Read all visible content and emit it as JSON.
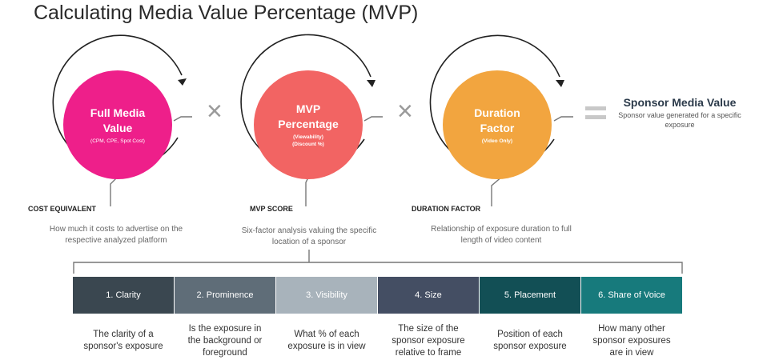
{
  "title": "Calculating Media Value Percentage (MVP)",
  "circles": [
    {
      "title_lines": [
        "Full Media",
        "Value"
      ],
      "sub_lines": [
        "(CPM, CPE, Spot Cost)"
      ],
      "color": "#ee1f8a"
    },
    {
      "title_lines": [
        "MVP",
        "Percentage"
      ],
      "sub_lines": [
        "(Viewability)",
        "(Discount %)"
      ],
      "color": "#f26463"
    },
    {
      "title_lines": [
        "Duration",
        "Factor"
      ],
      "sub_lines": [
        "(Video Only)"
      ],
      "color": "#f2a53f"
    }
  ],
  "operators": {
    "multiply": "×"
  },
  "result": {
    "title": "Sponsor Media Value",
    "description": "Sponsor value generated for a specific exposure"
  },
  "labels": [
    {
      "heading": "COST EQUIVALENT",
      "desc_lines": [
        "How much it costs to advertise on the",
        "respective analyzed platform"
      ]
    },
    {
      "heading": "MVP SCORE",
      "desc_lines": [
        "Six-factor analysis valuing the specific",
        "location of a sponsor"
      ]
    },
    {
      "heading": "DURATION FACTOR",
      "desc_lines": [
        "Relationship of exposure duration to full",
        "length of video content"
      ]
    }
  ],
  "factors": [
    {
      "label": "1. Clarity",
      "color": "#3a4750",
      "desc_lines": [
        "The clarity of a",
        "sponsor's exposure"
      ]
    },
    {
      "label": "2. Prominence",
      "color": "#5f6d78",
      "desc_lines": [
        "Is the exposure in",
        "the background or",
        "foreground"
      ]
    },
    {
      "label": "3. Visibility",
      "color": "#a8b3bb",
      "desc_lines": [
        "What % of each",
        "exposure is in view"
      ]
    },
    {
      "label": "4. Size",
      "color": "#444e63",
      "desc_lines": [
        "The size of the",
        "sponsor exposure",
        "relative to frame"
      ]
    },
    {
      "label": "5. Placement",
      "color": "#124f55",
      "desc_lines": [
        "Position of each",
        "sponsor exposure"
      ]
    },
    {
      "label": "6. Share of Voice",
      "color": "#177a7c",
      "desc_lines": [
        "How many other",
        "sponsor exposures",
        "are in view"
      ]
    }
  ]
}
